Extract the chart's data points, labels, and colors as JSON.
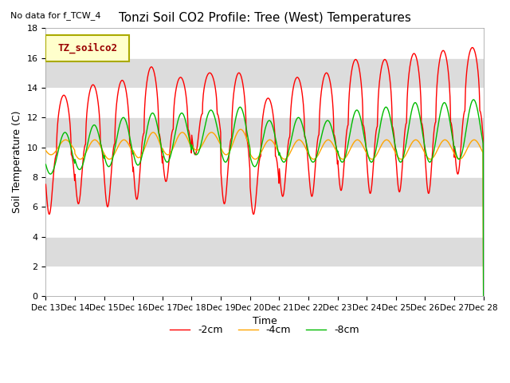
{
  "title": "Tonzi Soil CO2 Profile: Tree (West) Temperatures",
  "note": "No data for f_TCW_4",
  "ylabel": "Soil Temperature (C)",
  "xlabel": "Time",
  "legend_title": "TZ_soilco2",
  "ylim": [
    0,
    18
  ],
  "yticks": [
    0,
    2,
    4,
    6,
    8,
    10,
    12,
    14,
    16,
    18
  ],
  "xtick_labels": [
    "Dec 13",
    "Dec 14",
    "Dec 15",
    "Dec 16",
    "Dec 17",
    "Dec 18",
    "Dec 19",
    "Dec 20",
    "Dec 21",
    "Dec 22",
    "Dec 23",
    "Dec 24",
    "Dec 25",
    "Dec 26",
    "Dec 27",
    "Dec 28"
  ],
  "line_colors": {
    "minus2cm": "#FF0000",
    "minus4cm": "#FFA500",
    "minus8cm": "#00BB00"
  },
  "line_labels": [
    "-2cm",
    "-4cm",
    "-8cm"
  ],
  "background_color": "#FFFFFF",
  "plot_bg_light": "#DCDCDC",
  "plot_bg_dark": "#C8C8C8",
  "legend_box_color": "#FFFFCC",
  "legend_box_edge": "#AAAA00"
}
